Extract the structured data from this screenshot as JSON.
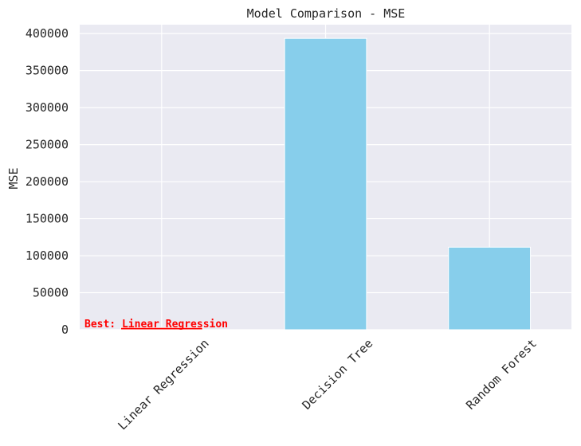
{
  "chart_data": {
    "type": "bar",
    "title": "Model Comparison - MSE",
    "xlabel": "",
    "ylabel": "MSE",
    "categories": [
      "Linear Regression",
      "Decision Tree",
      "Random Forest"
    ],
    "values": [
      3000,
      393500,
      111500
    ],
    "ylim": [
      0,
      412000
    ],
    "yticks": [
      0,
      50000,
      100000,
      150000,
      200000,
      250000,
      300000,
      350000,
      400000
    ],
    "grid": true,
    "bar_color": "#87ceeb",
    "highlight_index": 0,
    "highlight_color": "#ff0000",
    "background_color": "#eaeaf2",
    "annotation": "Best: Linear Regression"
  }
}
